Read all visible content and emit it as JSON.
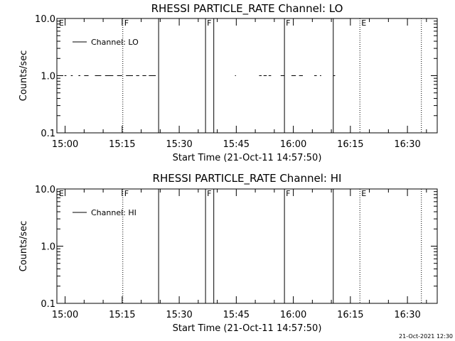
{
  "footer": {
    "timestamp": "21-Oct-2021 12:30"
  },
  "chart_data": [
    {
      "type": "line",
      "title": "RHESSI PARTICLE_RATE Channel: LO",
      "xlabel": "Start Time (21-Oct-11 14:57:50)",
      "ylabel": "Counts/sec",
      "xlim": [
        "14:57:50",
        "16:37:50"
      ],
      "ylim": [
        0.1,
        10.0
      ],
      "yscale": "log",
      "x_ticks": [
        "15:00",
        "15:15",
        "15:30",
        "15:45",
        "16:00",
        "16:15",
        "16:30"
      ],
      "y_ticks": [
        "0.1",
        "1.0",
        "10.0"
      ],
      "legend": {
        "entries": [
          "Channel: LO"
        ],
        "position": "top-left"
      },
      "series": [
        {
          "name": "Channel: LO",
          "segments": [
            {
              "start": "14:59:50",
              "end": "15:00:20",
              "value": 1.0
            },
            {
              "start": "15:01:30",
              "end": "15:02:00",
              "value": 1.0
            },
            {
              "start": "15:03:30",
              "end": "15:04:00",
              "value": 1.0
            },
            {
              "start": "15:05:00",
              "end": "15:06:10",
              "value": 1.0
            },
            {
              "start": "15:07:50",
              "end": "15:09:30",
              "value": 1.0
            },
            {
              "start": "15:10:30",
              "end": "15:12:40",
              "value": 1.0
            },
            {
              "start": "15:13:40",
              "end": "15:15:00",
              "value": 1.0
            },
            {
              "start": "15:16:00",
              "end": "15:17:50",
              "value": 1.0
            },
            {
              "start": "15:18:40",
              "end": "15:19:30",
              "value": 1.0
            },
            {
              "start": "15:20:20",
              "end": "15:21:20",
              "value": 1.0
            },
            {
              "start": "15:22:00",
              "end": "15:23:50",
              "value": 1.0
            },
            {
              "start": "15:44:40",
              "end": "15:44:55",
              "value": 1.0
            },
            {
              "start": "15:51:00",
              "end": "15:51:40",
              "value": 1.0
            },
            {
              "start": "15:52:10",
              "end": "15:53:00",
              "value": 1.0
            },
            {
              "start": "15:53:30",
              "end": "15:54:10",
              "value": 1.0
            },
            {
              "start": "15:56:40",
              "end": "15:57:40",
              "value": 1.0
            },
            {
              "start": "15:59:30",
              "end": "16:00:40",
              "value": 1.0
            },
            {
              "start": "16:01:30",
              "end": "16:02:30",
              "value": 1.0
            },
            {
              "start": "16:05:30",
              "end": "16:06:10",
              "value": 1.0
            },
            {
              "start": "16:07:00",
              "end": "16:07:20",
              "value": 1.0
            },
            {
              "start": "16:10:30",
              "end": "16:11:00",
              "value": 1.0
            }
          ]
        }
      ]
    },
    {
      "type": "line",
      "title": "RHESSI PARTICLE_RATE Channel: HI",
      "xlabel": "Start Time (21-Oct-11 14:57:50)",
      "ylabel": "Counts/sec",
      "xlim": [
        "14:57:50",
        "16:37:50"
      ],
      "ylim": [
        0.1,
        10.0
      ],
      "yscale": "log",
      "x_ticks": [
        "15:00",
        "15:15",
        "15:30",
        "15:45",
        "16:00",
        "16:15",
        "16:30"
      ],
      "y_ticks": [
        "0.1",
        "1.0",
        "10.0"
      ],
      "legend": {
        "entries": [
          "Channel: HI"
        ],
        "position": "top-left"
      },
      "series": [
        {
          "name": "Channel: HI",
          "segments": []
        }
      ]
    }
  ],
  "event_markers": [
    {
      "time": "14:58:00",
      "style": "none",
      "label": "E"
    },
    {
      "time": "15:15:10",
      "style": "dotted",
      "label": "F"
    },
    {
      "time": "15:24:35",
      "style": "solid",
      "label": ""
    },
    {
      "time": "15:36:55",
      "style": "solid",
      "label": "F"
    },
    {
      "time": "15:39:05",
      "style": "solid",
      "label": ""
    },
    {
      "time": "15:57:40",
      "style": "solid",
      "label": "F"
    },
    {
      "time": "16:10:30",
      "style": "solid",
      "label": ""
    },
    {
      "time": "16:17:30",
      "style": "dotted",
      "label": "E"
    },
    {
      "time": "16:33:40",
      "style": "dotted",
      "label": ""
    }
  ]
}
